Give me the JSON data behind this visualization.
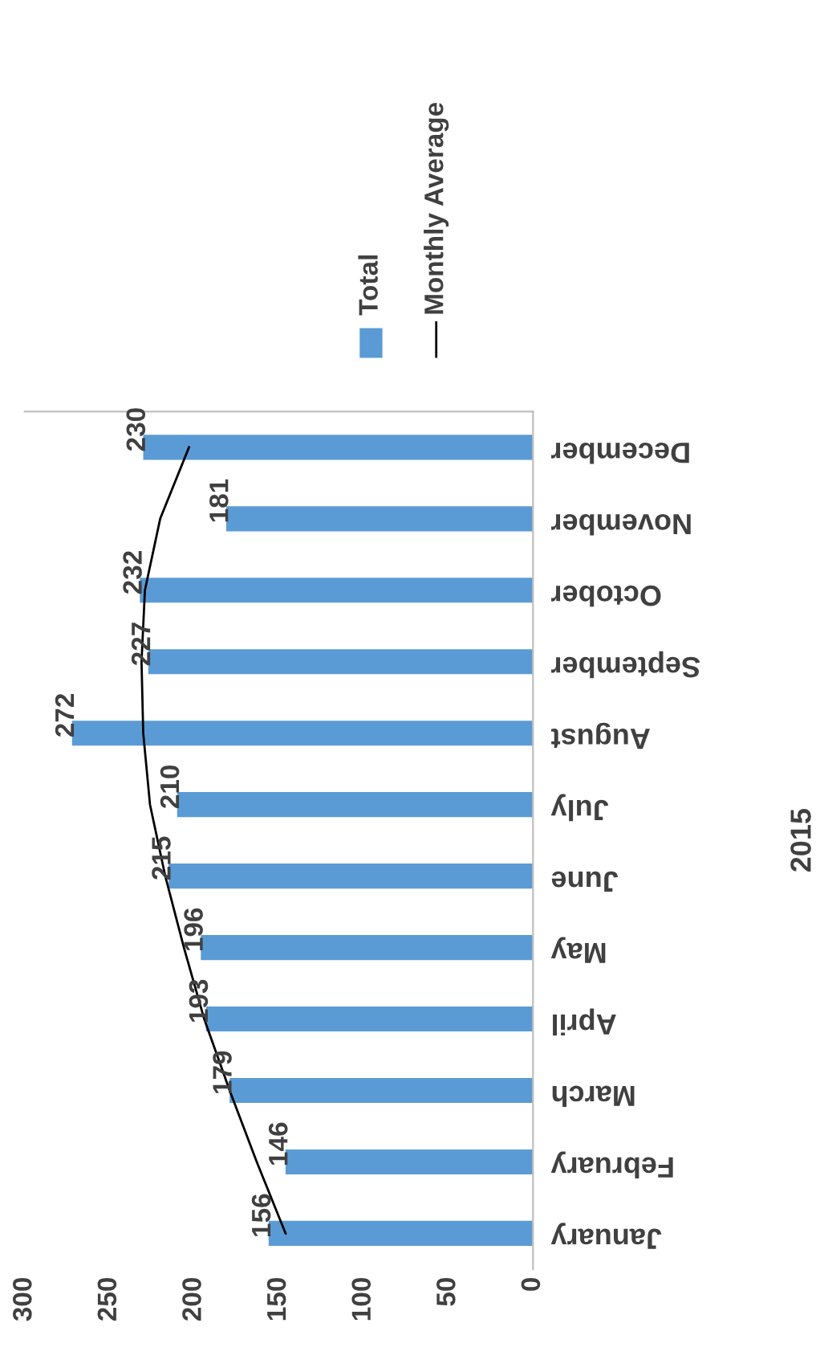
{
  "chart_data": {
    "type": "bar",
    "orientation": "horizontal",
    "ylabel": "2015",
    "categories": [
      "December",
      "November",
      "October",
      "September",
      "August",
      "July",
      "June",
      "May",
      "April",
      "March",
      "February",
      "January"
    ],
    "series": [
      {
        "name": "Total",
        "color": "#5b9bd5",
        "values": [
          230,
          181,
          232,
          227,
          272,
          210,
          215,
          196,
          193,
          179,
          146,
          156
        ],
        "value_labels": [
          "230",
          "181",
          "232",
          "227",
          "272",
          "210",
          "215",
          "196",
          "193",
          "179",
          "146",
          "156"
        ]
      },
      {
        "name": "Monthly Average",
        "type": "line",
        "color": "#000000",
        "values": [
          203,
          220,
          229,
          231,
          230,
          226,
          217,
          206,
          194,
          179,
          163,
          146
        ]
      }
    ],
    "xlim": [
      300,
      0
    ],
    "xticks": [
      0,
      50,
      100,
      150,
      200,
      250,
      300
    ],
    "grid": false,
    "legend": "top",
    "marker": "none",
    "line_style": "solid"
  }
}
